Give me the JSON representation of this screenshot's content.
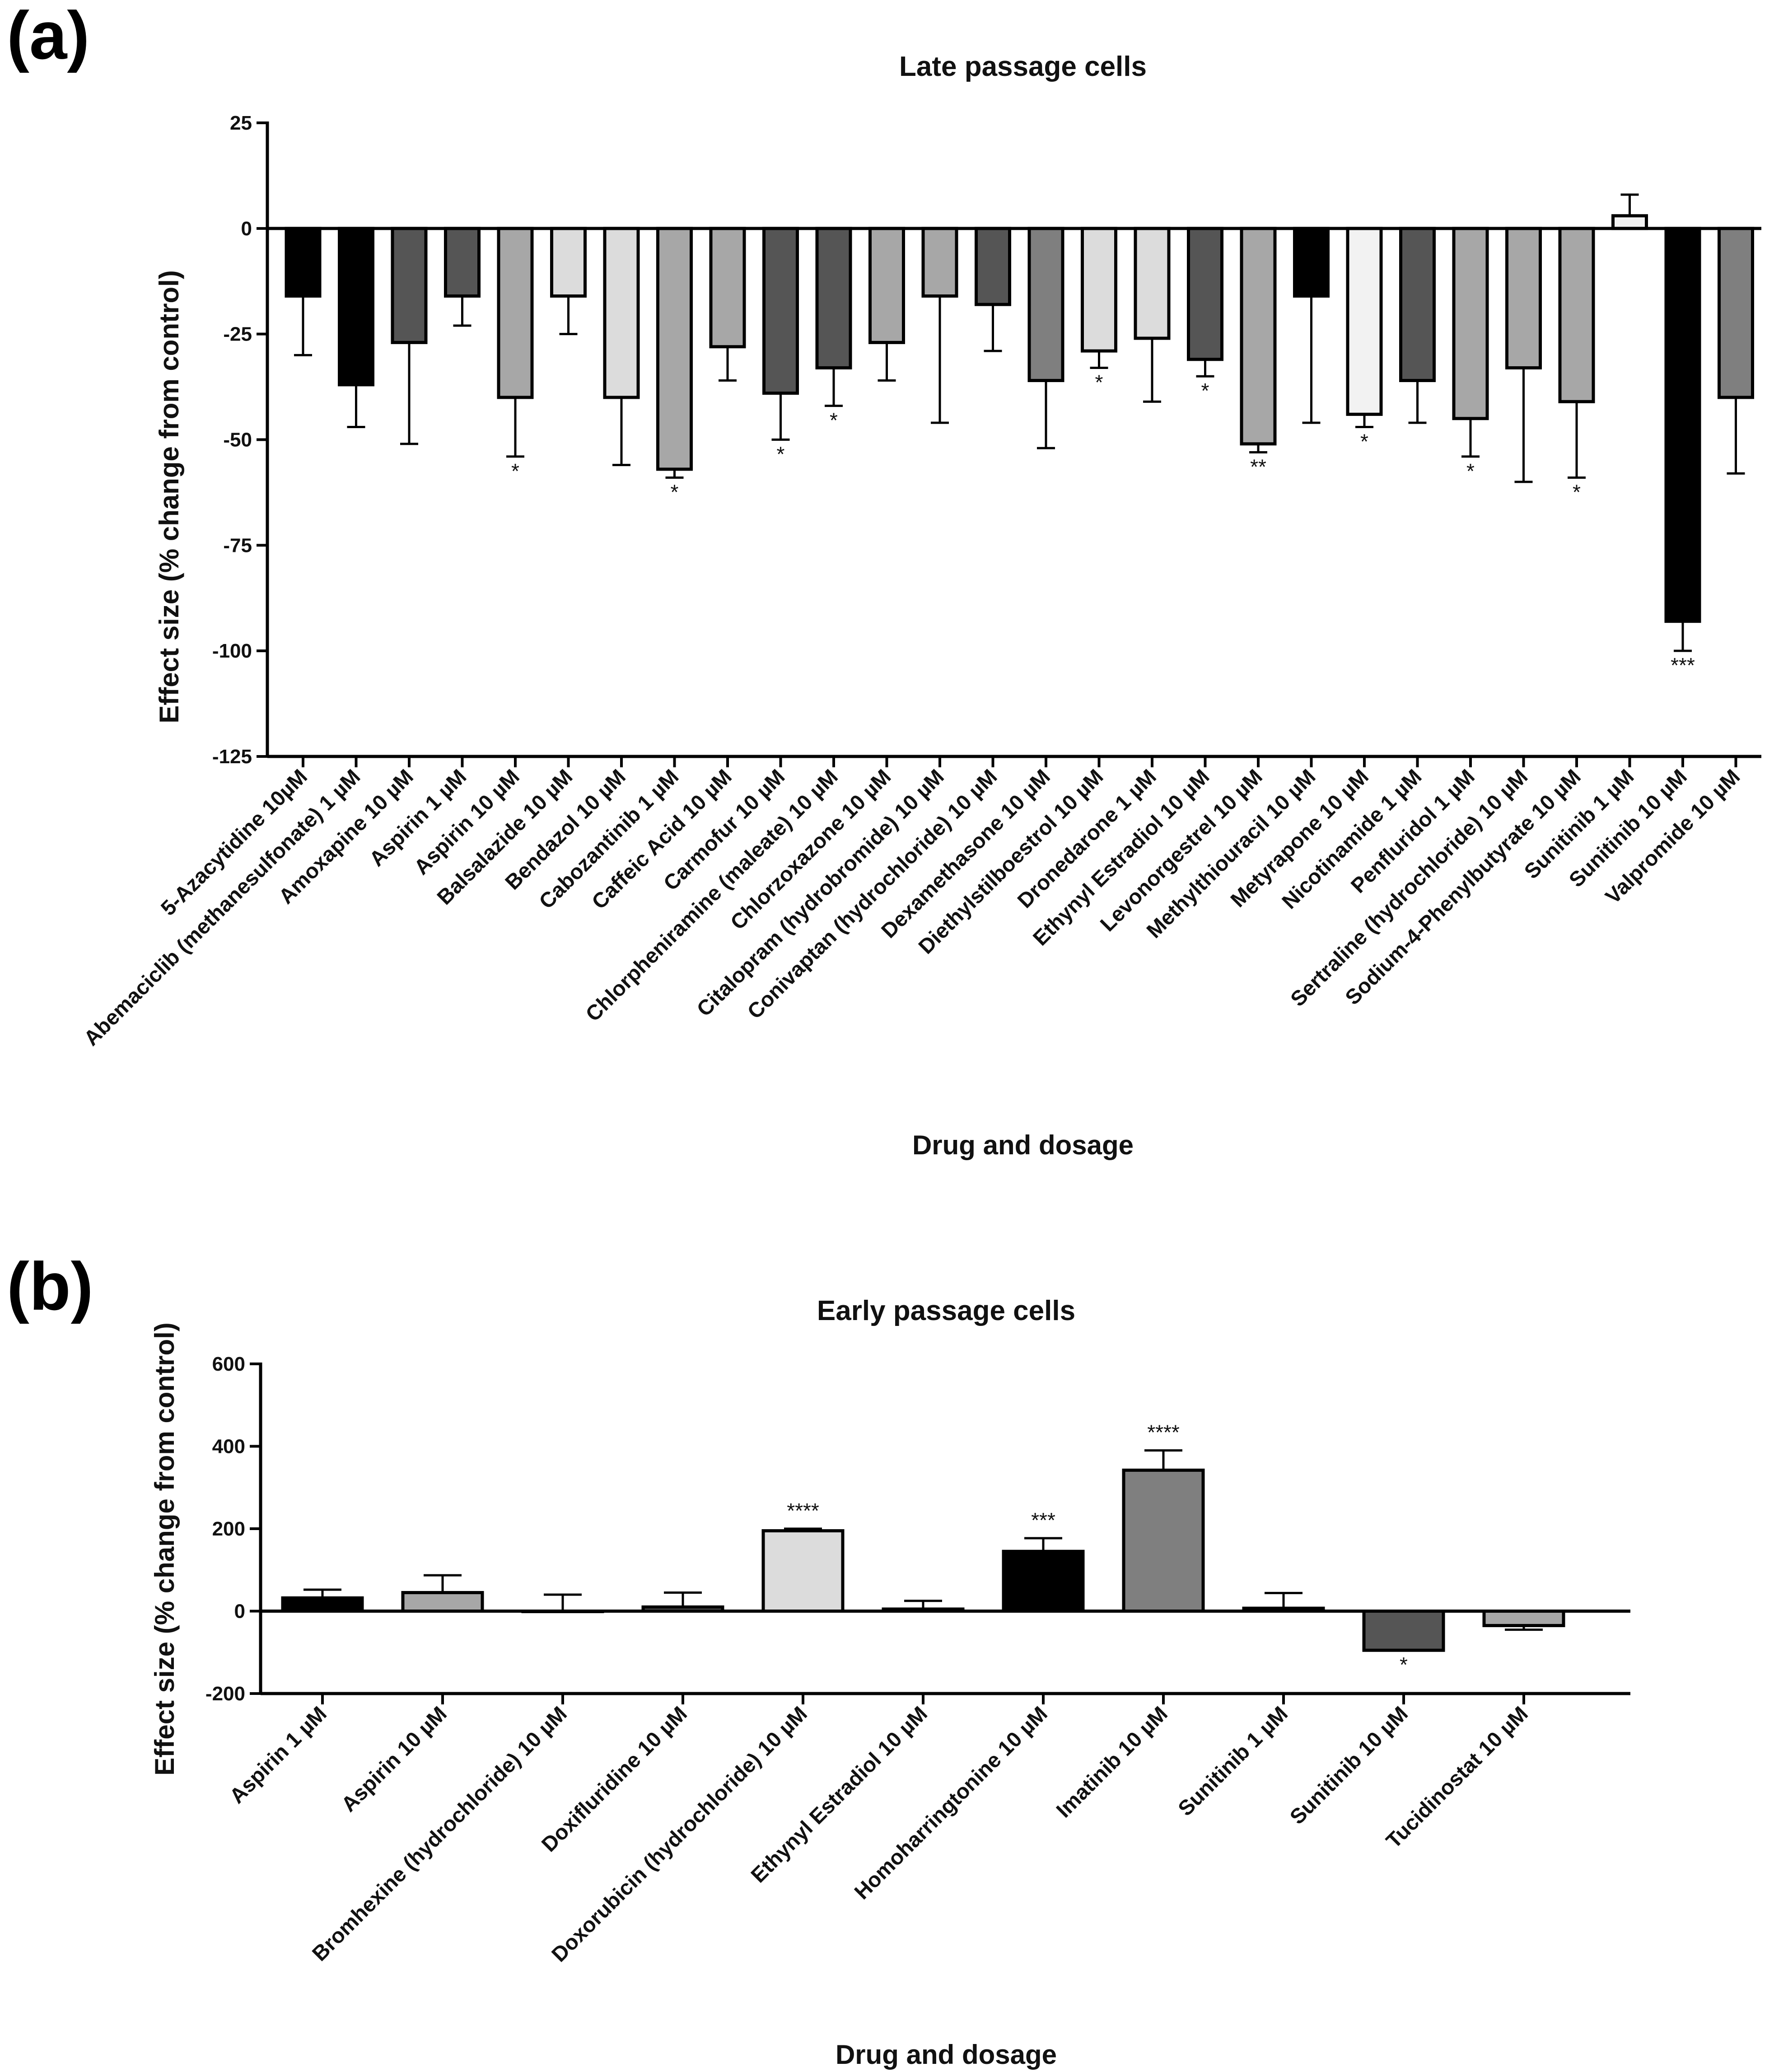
{
  "colors": {
    "black": "#000000",
    "dark": "#555555",
    "mid": "#7f7f7f",
    "light": "#a7a7a7",
    "pale": "#dcdcdc",
    "white": "#f2f2f2"
  },
  "chart_data": [
    {
      "panel": "(a)",
      "type": "bar",
      "title": "Late passage cells",
      "xlabel": "Drug and dosage",
      "ylabel": "Effect size (% change from control)",
      "ylim": [
        -125,
        25
      ],
      "yticks": [
        25,
        0,
        -25,
        -50,
        -75,
        -100,
        -125
      ],
      "categories": [
        "5-Azacytidine 10µM",
        "Abemaciclib (methanesulfonate) 1 µM",
        "Amoxapine 10 µM",
        "Aspirin 1 µM",
        "Aspirin 10 µM",
        "Balsalazide 10 µM",
        "Bendazol 10 µM",
        "Cabozantinib 1 µM",
        "Caffeic Acid 10 µM",
        "Carmofur 10 µM",
        "Chlorpheniramine (maleate) 10 µM",
        "Chlorzoxazone 10 µM",
        "Citalopram (hydrobromide) 10 µM",
        "Conivaptan (hydrochloride) 10 µM",
        "Dexamethasone 10 µM",
        "Diethylstilboestrol 10 µM",
        "Dronedarone 1 µM",
        "Ethynyl Estradiol 10 µM",
        "Levonorgestrel 10 µM",
        "Methylthiouracil 10 µM",
        "Metyrapone 10 µM",
        "Nicotinamide 1 µM",
        "Penfluridol 1 µM",
        "Sertraline (hydrochloride) 10 µM",
        "Sodium-4-Phenylbutyrate 10 µM",
        "Sunitinib 1 µM",
        "Sunitinib 10 µM",
        "Valpromide 10 µM"
      ],
      "values": [
        -16,
        -37,
        -27,
        -16,
        -40,
        -16,
        -40,
        -57,
        -28,
        -39,
        -33,
        -27,
        -16,
        -18,
        -36,
        -29,
        -26,
        -31,
        -51,
        -16,
        -44,
        -36,
        -45,
        -33,
        -41,
        3,
        -93,
        -40
      ],
      "errors": [
        14,
        10,
        24,
        7,
        14,
        9,
        16,
        2,
        8,
        11,
        9,
        9,
        30,
        11,
        16,
        4,
        15,
        4,
        2,
        30,
        3,
        10,
        9,
        27,
        18,
        5,
        7,
        18
      ],
      "fills": [
        "black",
        "black",
        "dark",
        "dark",
        "light",
        "pale",
        "pale",
        "light",
        "light",
        "dark",
        "dark",
        "light",
        "light",
        "dark",
        "mid",
        "pale",
        "pale",
        "dark",
        "light",
        "black",
        "white",
        "dark",
        "light",
        "light",
        "light",
        "white",
        "black",
        "mid"
      ],
      "significance": [
        "",
        "",
        "",
        "",
        "*",
        "",
        "",
        "*",
        "",
        "*",
        "*",
        "",
        "",
        "",
        "",
        "*",
        "",
        "*",
        "**",
        "",
        "*",
        "",
        "*",
        "",
        "*",
        "",
        "***",
        ""
      ]
    },
    {
      "panel": "(b)",
      "type": "bar",
      "title": "Early passage cells",
      "xlabel": "Drug and dosage",
      "ylabel": "Effect size (% change from control)",
      "ylim": [
        -200,
        600
      ],
      "yticks": [
        600,
        400,
        200,
        0,
        -200
      ],
      "categories": [
        "Aspirin 1 µM",
        "Aspirin 10 µM",
        "Bromhexine (hydrochloride) 10 µM",
        "Doxifluridine 10 µM",
        "Doxorubicin (hydrochloride) 10 µM",
        "Ethynyl Estradiol 10 µM",
        "Homoharringtonine 10 µM",
        "Imatinib 10 µM",
        "Sunitinib 1 µM",
        "Sunitinib 10 µM",
        "Tucidinostat 10 µM"
      ],
      "values": [
        32,
        45,
        0,
        10,
        195,
        5,
        145,
        342,
        7,
        -95,
        -35
      ],
      "errors": [
        20,
        42,
        40,
        35,
        5,
        20,
        32,
        48,
        37,
        0,
        10
      ],
      "fills": [
        "black",
        "light",
        "light",
        "dark",
        "pale",
        "mid",
        "black",
        "mid",
        "mid",
        "dark",
        "light"
      ],
      "significance": [
        "",
        "",
        "",
        "",
        "****",
        "",
        "***",
        "****",
        "",
        "*",
        ""
      ]
    }
  ]
}
